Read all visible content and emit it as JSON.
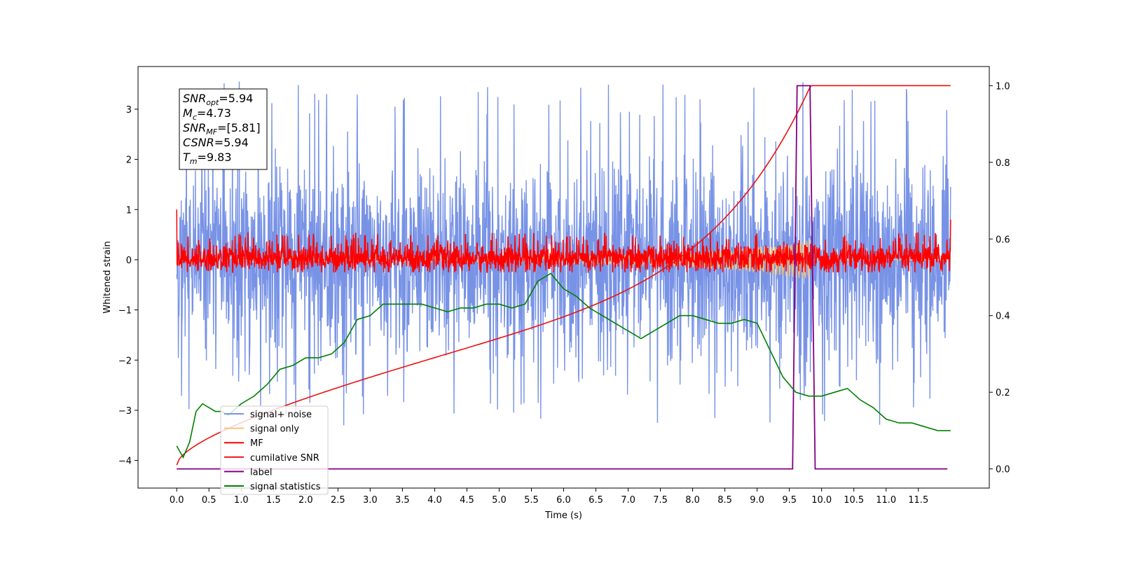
{
  "chart_data": {
    "type": "line",
    "xlabel": "Time (s)",
    "ylabel": "Whitened strain",
    "xlim": [
      -0.6,
      12.6
    ],
    "ylim": [
      -4.55,
      3.85
    ],
    "ylim_right": [
      -0.05,
      1.05
    ],
    "x_ticks": [
      "0.0",
      "0.5",
      "1.0",
      "1.5",
      "2.0",
      "2.5",
      "3.0",
      "3.5",
      "4.0",
      "4.5",
      "5.0",
      "5.5",
      "6.0",
      "6.5",
      "7.0",
      "7.5",
      "8.0",
      "8.5",
      "9.0",
      "9.5",
      "10.0",
      "10.5",
      "11.0",
      "11.5"
    ],
    "y_ticks_left": [
      "3",
      "2",
      "1",
      "0",
      "−1",
      "−2",
      "−3",
      "−4"
    ],
    "y_ticks_left_values": [
      3,
      2,
      1,
      0,
      -1,
      -2,
      -3,
      -4
    ],
    "y_ticks_right": [
      "1.0",
      "0.8",
      "0.6",
      "0.4",
      "0.2",
      "0.0"
    ],
    "y_ticks_right_values": [
      1.0,
      0.8,
      0.6,
      0.4,
      0.2,
      0.0
    ],
    "legend_position": "lower-left",
    "legend": [
      {
        "label": "signal+ noise",
        "color": "#7893e6"
      },
      {
        "label": "signal only",
        "color": "#f5c37a"
      },
      {
        "label": "MF",
        "color": "#ff0000"
      },
      {
        "label": "cumilative SNR",
        "color": "#ee1111"
      },
      {
        "label": "label",
        "color": "#800080"
      },
      {
        "label": "signal statistics",
        "color": "#008000"
      }
    ],
    "annotation": {
      "snr_opt": "5.94",
      "mc": "4.73",
      "snr_mf": "[5.81]",
      "csnr": "5.94",
      "tm": "9.83"
    },
    "series": [
      {
        "name": "signal+ noise",
        "axis": "left",
        "description_range": "noise band ~[-1.5, 1.5], spikes to ~3.5 / ~-3.2",
        "x_range": [
          0.0,
          12.0
        ],
        "envelope": {
          "low": -1.5,
          "high": 1.5,
          "peak_high": 3.55,
          "peak_low": -3.3
        }
      },
      {
        "name": "signal only",
        "axis": "left",
        "x_range": [
          0.0,
          12.0
        ],
        "chirp_end": 9.83
      },
      {
        "name": "MF",
        "axis": "left",
        "x_range": [
          0.0,
          12.0
        ],
        "envelope": {
          "low": -0.25,
          "high": 0.35,
          "peak_high": 0.55,
          "start": 1.0,
          "end": 0.8
        }
      },
      {
        "name": "cumilative SNR",
        "axis": "right",
        "x": [
          0.0,
          0.5,
          1.0,
          1.5,
          2.0,
          2.5,
          3.0,
          3.5,
          4.0,
          4.5,
          5.0,
          5.5,
          6.0,
          6.5,
          7.0,
          7.5,
          8.0,
          8.5,
          9.0,
          9.3,
          9.5,
          9.7,
          9.83,
          10.0,
          11.0,
          12.0
        ],
        "values": [
          0.01,
          0.08,
          0.12,
          0.15,
          0.18,
          0.21,
          0.24,
          0.27,
          0.3,
          0.33,
          0.36,
          0.39,
          0.43,
          0.46,
          0.5,
          0.54,
          0.58,
          0.63,
          0.7,
          0.75,
          0.81,
          0.88,
          1.0,
          1.0,
          1.0,
          1.0
        ]
      },
      {
        "name": "label",
        "axis": "right",
        "x": [
          0.0,
          9.55,
          9.62,
          9.82,
          9.9,
          11.95
        ],
        "values": [
          0.0,
          0.0,
          1.0,
          1.0,
          0.0,
          0.0
        ]
      },
      {
        "name": "signal statistics",
        "axis": "right",
        "x": [
          0.0,
          0.1,
          0.2,
          0.3,
          0.4,
          0.5,
          0.6,
          0.7,
          0.8,
          1.0,
          1.2,
          1.4,
          1.6,
          1.8,
          2.0,
          2.2,
          2.4,
          2.6,
          2.8,
          3.0,
          3.2,
          3.4,
          3.6,
          3.8,
          4.0,
          4.2,
          4.4,
          4.6,
          4.8,
          5.0,
          5.2,
          5.4,
          5.6,
          5.8,
          6.0,
          6.2,
          6.4,
          6.6,
          6.8,
          7.0,
          7.2,
          7.4,
          7.6,
          7.8,
          8.0,
          8.2,
          8.4,
          8.6,
          8.8,
          9.0,
          9.2,
          9.4,
          9.6,
          9.8,
          10.0,
          10.2,
          10.4,
          10.6,
          10.8,
          11.0,
          11.2,
          11.4,
          11.6,
          11.8,
          12.0
        ],
        "values": [
          0.06,
          0.03,
          0.07,
          0.15,
          0.17,
          0.16,
          0.15,
          0.15,
          0.14,
          0.17,
          0.19,
          0.22,
          0.26,
          0.27,
          0.29,
          0.29,
          0.3,
          0.33,
          0.39,
          0.4,
          0.43,
          0.43,
          0.43,
          0.43,
          0.42,
          0.41,
          0.42,
          0.42,
          0.43,
          0.43,
          0.42,
          0.43,
          0.49,
          0.51,
          0.47,
          0.45,
          0.42,
          0.4,
          0.38,
          0.36,
          0.34,
          0.36,
          0.38,
          0.4,
          0.4,
          0.39,
          0.38,
          0.38,
          0.39,
          0.38,
          0.31,
          0.24,
          0.2,
          0.19,
          0.19,
          0.2,
          0.21,
          0.18,
          0.16,
          0.13,
          0.12,
          0.12,
          0.11,
          0.1,
          0.1
        ]
      }
    ]
  }
}
